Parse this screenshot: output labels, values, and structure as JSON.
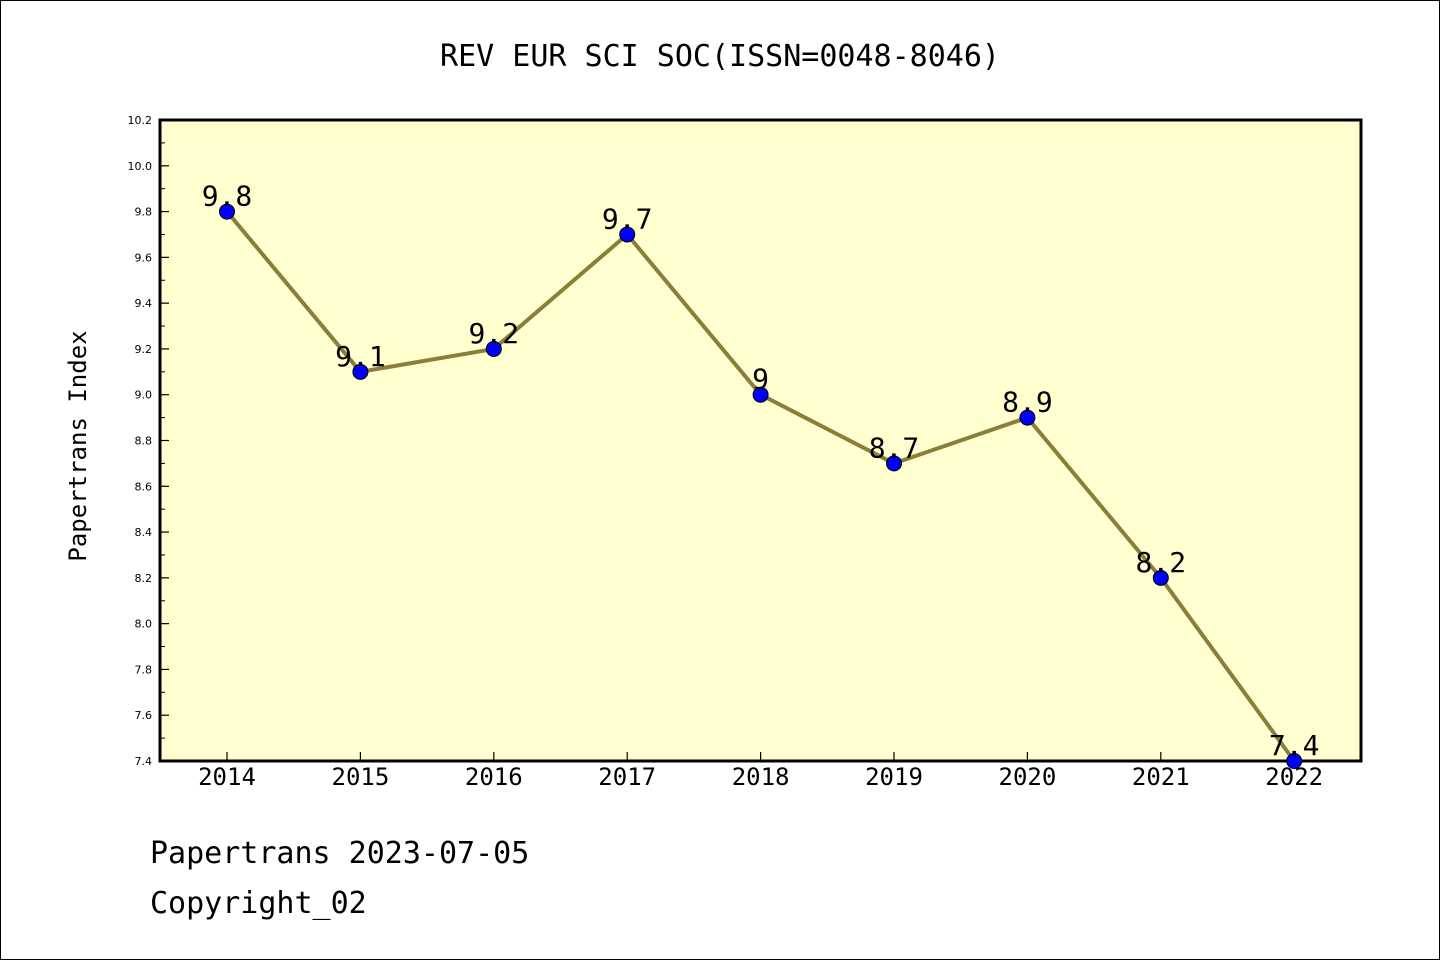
{
  "chart_data": {
    "type": "line",
    "title": "REV EUR SCI SOC(ISSN=0048-8046)",
    "ylabel": "Papertrans Index",
    "xlabel": "",
    "categories": [
      "2014",
      "2015",
      "2016",
      "2017",
      "2018",
      "2019",
      "2020",
      "2021",
      "2022"
    ],
    "values": [
      9.8,
      9.1,
      9.2,
      9.7,
      9.0,
      8.7,
      8.9,
      8.2,
      7.4
    ],
    "data_labels": [
      "9.8",
      "9.1",
      "9.2",
      "9.7",
      "9",
      "8.7",
      "8.9",
      "8.2",
      "7.4"
    ],
    "ylim": [
      7.4,
      10.2
    ],
    "yticks": [
      "7.4",
      "7.6",
      "7.8",
      "8.0",
      "8.2",
      "8.4",
      "8.6",
      "8.8",
      "9.0",
      "9.2",
      "9.4",
      "9.6",
      "9.8",
      "10.0",
      "10.2"
    ],
    "grid": false,
    "colors": {
      "plot_background": "#ffffd0",
      "line": "#8b7d3a",
      "marker": "#0000ff"
    }
  },
  "footer": {
    "line1": "Papertrans 2023-07-05",
    "line2": "Copyright_02"
  }
}
